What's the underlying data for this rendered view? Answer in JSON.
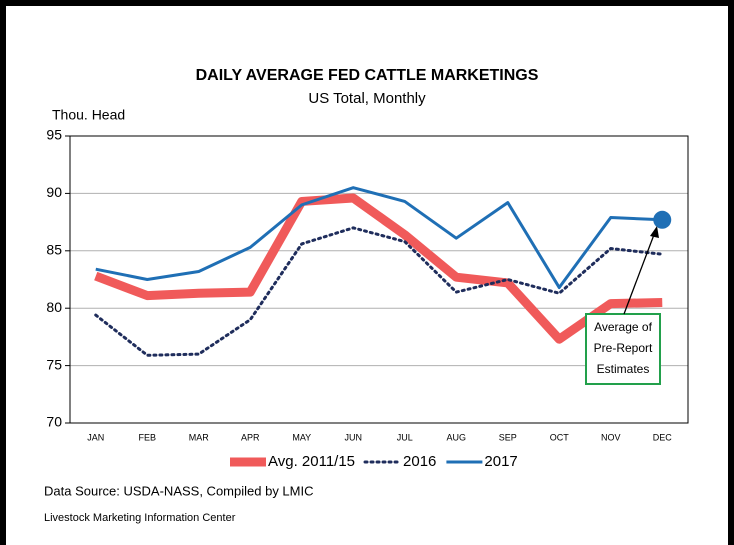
{
  "chart_data": {
    "type": "line",
    "title": "DAILY AVERAGE FED CATTLE MARKETINGS",
    "subtitle": "US Total, Monthly",
    "y_label": "Thou. Head",
    "categories": [
      "JAN",
      "FEB",
      "MAR",
      "APR",
      "MAY",
      "JUN",
      "JUL",
      "AUG",
      "SEP",
      "OCT",
      "NOV",
      "DEC"
    ],
    "series": [
      {
        "name": "Avg. 2011/15",
        "color": "#f05a5a",
        "values": [
          82.8,
          81.1,
          81.3,
          81.4,
          89.3,
          89.6,
          86.4,
          82.7,
          82.2,
          77.3,
          80.4,
          80.5
        ]
      },
      {
        "name": "2016",
        "color": "#1f2d5c",
        "values": [
          79.4,
          75.9,
          76.0,
          79.0,
          85.6,
          87.0,
          85.8,
          81.4,
          82.5,
          81.3,
          85.2,
          84.7
        ]
      },
      {
        "name": "2017",
        "color": "#1f6fb5",
        "values": [
          83.4,
          82.5,
          83.2,
          85.3,
          89.0,
          90.5,
          89.3,
          86.1,
          89.2,
          81.8,
          87.9,
          87.7
        ]
      }
    ],
    "ylim": [
      70,
      95
    ],
    "yticks": [
      70,
      75,
      80,
      85,
      90,
      95
    ],
    "grid": true,
    "annotation": [
      "Average of",
      "Pre-Report",
      "Estimates"
    ],
    "source": "Data Source:  USDA-NASS, Compiled by LMIC",
    "footer": "Livestock Marketing Information Center"
  }
}
